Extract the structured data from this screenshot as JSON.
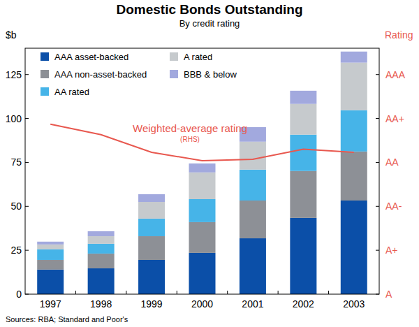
{
  "chart_data": {
    "type": "bar",
    "title": "Domestic Bonds Outstanding",
    "subtitle": "By credit rating",
    "ylabel": "$b",
    "y2label": "Rating",
    "source": "Sources: RBA; Standard and Poor's",
    "categories": [
      "1997",
      "1998",
      "1999",
      "2000",
      "2001",
      "2002",
      "2003"
    ],
    "stacked": true,
    "grid": false,
    "legend": "upper left",
    "ylim": [
      0,
      140
    ],
    "yticks": [
      0,
      25,
      50,
      75,
      100,
      125
    ],
    "y2lim": [
      0,
      5.6
    ],
    "y2ticks": [
      {
        "value": 0,
        "label": "A"
      },
      {
        "value": 1,
        "label": "A+"
      },
      {
        "value": 2,
        "label": "AA-"
      },
      {
        "value": 3,
        "label": "AA"
      },
      {
        "value": 4,
        "label": "AA+"
      },
      {
        "value": 5,
        "label": "AAA"
      }
    ],
    "annotations": [
      "(RHS)"
    ],
    "series": [
      {
        "name": "AAA asset-backed",
        "color": "#0b4fa8",
        "values": [
          14,
          14.7,
          19.5,
          23.5,
          31.8,
          43.4,
          53.3
        ]
      },
      {
        "name": "AAA non-asset-backed",
        "color": "#8d9096",
        "values": [
          5.5,
          8.4,
          13.5,
          17.5,
          21.5,
          26.7,
          27.9
        ]
      },
      {
        "name": "AA rated",
        "color": "#46b4e8",
        "values": [
          6,
          5.6,
          10,
          13.1,
          17.6,
          20.7,
          23.5
        ]
      },
      {
        "name": "A rated",
        "color": "#c6cacd",
        "values": [
          2.8,
          4.3,
          9.5,
          15.2,
          15.9,
          17.5,
          27.1
        ]
      },
      {
        "name": "BBB & below",
        "color": "#a2a9de",
        "values": [
          1.6,
          2.8,
          4.4,
          5.1,
          8.3,
          7.5,
          6.3
        ]
      },
      {
        "name": "Weighted-average rating",
        "color": "#e8584f",
        "type": "line",
        "axis": "y2",
        "values": [
          3.87,
          3.63,
          3.23,
          3.04,
          3.07,
          3.3,
          3.23
        ]
      }
    ]
  }
}
